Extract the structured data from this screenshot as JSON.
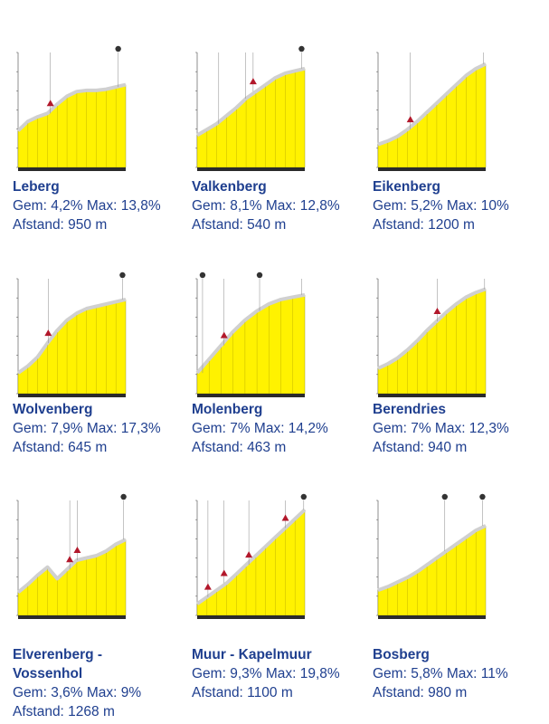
{
  "colors": {
    "fill": "#fff200",
    "ridge": "#d0d0d0",
    "text": "#1f3f8f",
    "axis": "#444444"
  },
  "charts": [
    {
      "name": "Leberg",
      "gem": "Gem: 4,2% Max: 13,8%",
      "dist": "Afstand: 950 m",
      "profile": [
        0.32,
        0.4,
        0.44,
        0.47,
        0.55,
        0.62,
        0.66,
        0.67,
        0.67,
        0.68,
        0.7,
        0.72
      ],
      "markers": [
        {
          "x": 0.3,
          "type": "triangle"
        },
        {
          "x": 0.93,
          "type": "circle"
        }
      ]
    },
    {
      "name": "Valkenberg",
      "gem": "Gem: 8,1% Max: 12,8%",
      "dist": "Afstand: 540 m",
      "profile": [
        0.28,
        0.33,
        0.38,
        0.45,
        0.52,
        0.6,
        0.66,
        0.72,
        0.78,
        0.82,
        0.84,
        0.86
      ],
      "markers": [
        {
          "x": 0.2,
          "type": "line"
        },
        {
          "x": 0.45,
          "type": "line"
        },
        {
          "x": 0.52,
          "type": "triangle"
        },
        {
          "x": 0.97,
          "type": "circle"
        }
      ]
    },
    {
      "name": "Eikenberg",
      "gem": "Gem: 5,2% Max: 10%",
      "dist": "Afstand: 1200 m",
      "profile": [
        0.2,
        0.23,
        0.27,
        0.33,
        0.4,
        0.48,
        0.56,
        0.64,
        0.72,
        0.8,
        0.86,
        0.9
      ],
      "markers": [
        {
          "x": 0.3,
          "type": "triangle"
        },
        {
          "x": 0.98,
          "type": "line"
        }
      ]
    },
    {
      "name": "Wolvenberg",
      "gem": "Gem: 7,9% Max: 17,3%",
      "dist": "Afstand: 645 m",
      "profile": [
        0.18,
        0.24,
        0.32,
        0.44,
        0.55,
        0.64,
        0.7,
        0.74,
        0.76,
        0.78,
        0.8,
        0.82
      ],
      "markers": [
        {
          "x": 0.28,
          "type": "triangle"
        },
        {
          "x": 0.97,
          "type": "circle"
        }
      ]
    },
    {
      "name": "Molenberg",
      "gem": "Gem: 7% Max: 14,2%",
      "dist": "Afstand: 463 m",
      "profile": [
        0.18,
        0.3,
        0.42,
        0.54,
        0.64,
        0.72,
        0.78,
        0.82,
        0.84,
        0.86
      ],
      "markers": [
        {
          "x": 0.05,
          "type": "circle"
        },
        {
          "x": 0.25,
          "type": "triangle"
        },
        {
          "x": 0.58,
          "type": "circle"
        },
        {
          "x": 0.97,
          "type": "line"
        }
      ]
    },
    {
      "name": "Berendries",
      "gem": "Gem: 7% Max: 12,3%",
      "dist": "Afstand: 940 m",
      "profile": [
        0.22,
        0.26,
        0.31,
        0.38,
        0.46,
        0.55,
        0.63,
        0.71,
        0.78,
        0.84,
        0.88,
        0.91
      ],
      "markers": [
        {
          "x": 0.55,
          "type": "triangle"
        },
        {
          "x": 0.99,
          "type": "line"
        }
      ]
    },
    {
      "name": "Elverenberg - Vossenhol",
      "gem": "Gem: 3,6% Max: 9%",
      "dist": "Afstand: 1268 m",
      "profile": [
        0.2,
        0.27,
        0.35,
        0.42,
        0.32,
        0.4,
        0.48,
        0.5,
        0.52,
        0.56,
        0.62,
        0.66
      ],
      "markers": [
        {
          "x": 0.48,
          "type": "triangle"
        },
        {
          "x": 0.55,
          "type": "triangle"
        },
        {
          "x": 0.98,
          "type": "circle"
        }
      ]
    },
    {
      "name": "Muur - Kapelmuur",
      "gem": "Gem: 9,3% Max: 19,8%",
      "dist": "Afstand: 1100 m",
      "profile": [
        0.1,
        0.16,
        0.22,
        0.28,
        0.36,
        0.44,
        0.52,
        0.6,
        0.68,
        0.76,
        0.84,
        0.92
      ],
      "markers": [
        {
          "x": 0.1,
          "type": "triangle"
        },
        {
          "x": 0.25,
          "type": "triangle"
        },
        {
          "x": 0.48,
          "type": "triangle"
        },
        {
          "x": 0.82,
          "type": "triangle"
        },
        {
          "x": 0.99,
          "type": "circle"
        }
      ]
    },
    {
      "name": "Bosberg",
      "gem": "Gem: 5,8% Max: 11%",
      "dist": "Afstand: 980 m",
      "profile": [
        0.22,
        0.25,
        0.29,
        0.33,
        0.38,
        0.44,
        0.5,
        0.56,
        0.62,
        0.68,
        0.74,
        0.78
      ],
      "markers": [
        {
          "x": 0.62,
          "type": "circle"
        },
        {
          "x": 0.97,
          "type": "circle"
        }
      ]
    }
  ],
  "chart_data": [
    {
      "type": "area",
      "title": "Leberg",
      "gem": "Gem: 4,2% Max: 13,8%",
      "afstand": "Afstand: 950 m"
    },
    {
      "type": "area",
      "title": "Valkenberg",
      "gem": "Gem: 8,1% Max: 12,8%",
      "afstand": "Afstand: 540 m"
    },
    {
      "type": "area",
      "title": "Eikenberg",
      "gem": "Gem: 5,2% Max: 10%",
      "afstand": "Afstand: 1200 m"
    },
    {
      "type": "area",
      "title": "Wolvenberg",
      "gem": "Gem: 7,9% Max: 17,3%",
      "afstand": "Afstand: 645 m"
    },
    {
      "type": "area",
      "title": "Molenberg",
      "gem": "Gem: 7% Max: 14,2%",
      "afstand": "Afstand: 463 m"
    },
    {
      "type": "area",
      "title": "Berendries",
      "gem": "Gem: 7% Max: 12,3%",
      "afstand": "Afstand: 940 m"
    },
    {
      "type": "area",
      "title": "Elverenberg - Vossenhol",
      "gem": "Gem: 3,6% Max: 9%",
      "afstand": "Afstand: 1268 m"
    },
    {
      "type": "area",
      "title": "Muur - Kapelmuur",
      "gem": "Gem: 9,3% Max: 19,8%",
      "afstand": "Afstand: 1100 m"
    },
    {
      "type": "area",
      "title": "Bosberg",
      "gem": "Gem: 5,8% Max: 11%",
      "afstand": "Afstand: 980 m"
    }
  ]
}
